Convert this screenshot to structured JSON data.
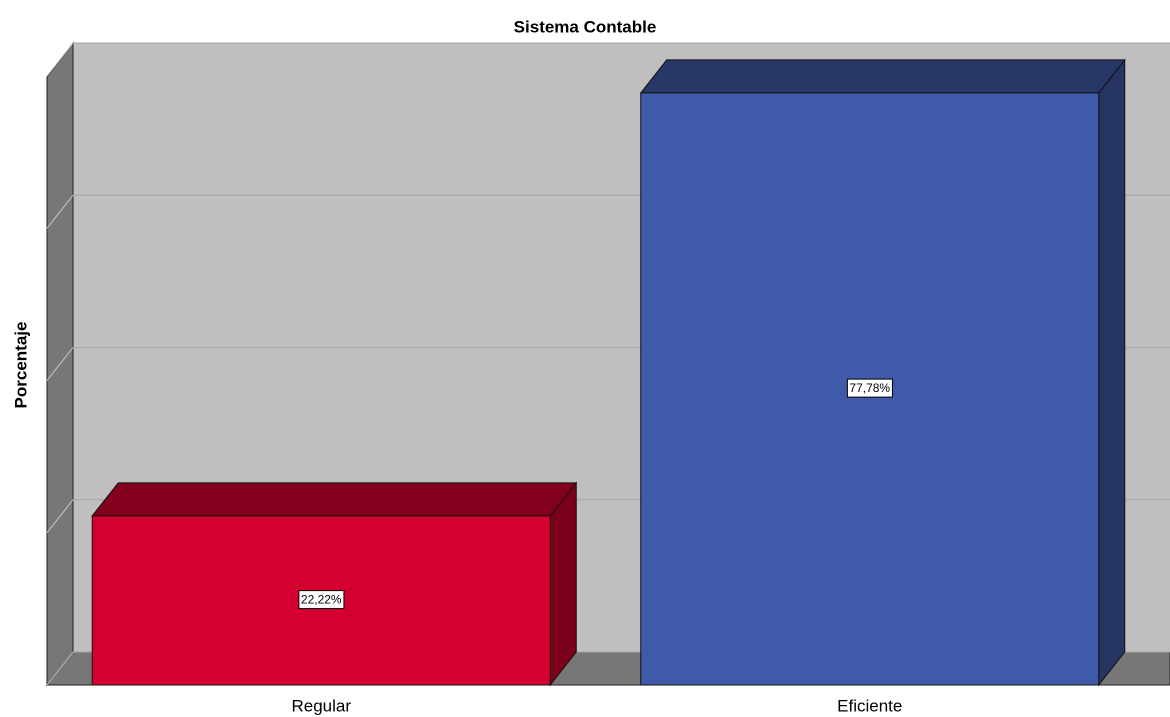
{
  "chart_data": {
    "type": "bar3d",
    "title": "Sistema Contable",
    "y_label": "Porcentaje",
    "categories": [
      "Regular",
      "Eficiente"
    ],
    "values": [
      22.22,
      77.78
    ],
    "value_labels": [
      "22,22%",
      "77,78%"
    ],
    "colors": [
      "#d4002f",
      "#3f5aa8"
    ],
    "ylim": [
      0,
      80
    ],
    "yticks": [
      0,
      20,
      40,
      60,
      80
    ],
    "grid": true
  }
}
